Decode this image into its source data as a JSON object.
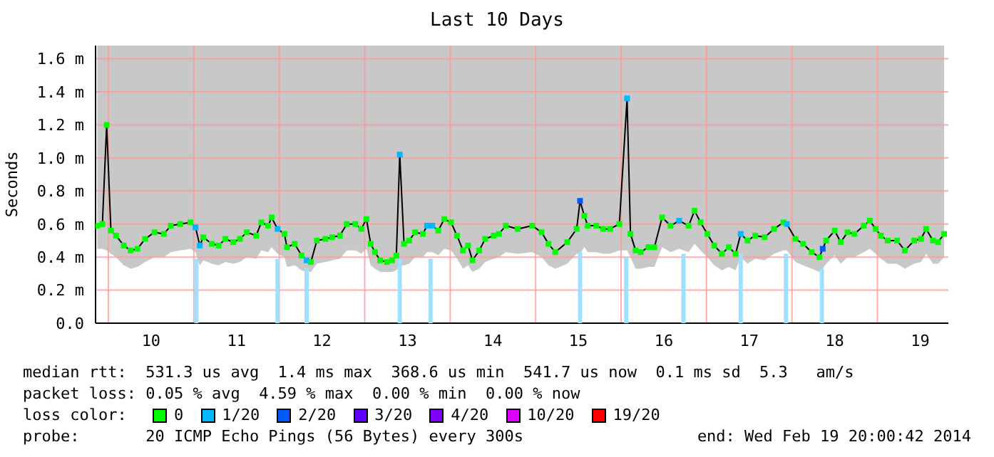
{
  "chart_data": {
    "type": "line",
    "title": "Last 10 Days",
    "ylabel": "Seconds",
    "legend_title": "loss color:",
    "legend": "bottom",
    "marker": "square",
    "grid": true,
    "xlim": [
      9.85,
      19.83
    ],
    "xticks": [
      {
        "value": 10,
        "label": null
      },
      {
        "value": 10.5,
        "label": "10"
      },
      {
        "value": 11,
        "label": null
      },
      {
        "value": 11.5,
        "label": "11"
      },
      {
        "value": 12,
        "label": null
      },
      {
        "value": 12.5,
        "label": "12"
      },
      {
        "value": 13,
        "label": null
      },
      {
        "value": 13.5,
        "label": "13"
      },
      {
        "value": 14,
        "label": null
      },
      {
        "value": 14.5,
        "label": "14"
      },
      {
        "value": 15,
        "label": null
      },
      {
        "value": 15.5,
        "label": "15"
      },
      {
        "value": 16,
        "label": null
      },
      {
        "value": 16.5,
        "label": "16"
      },
      {
        "value": 17,
        "label": null
      },
      {
        "value": 17.5,
        "label": "17"
      },
      {
        "value": 18,
        "label": null
      },
      {
        "value": 18.5,
        "label": "18"
      },
      {
        "value": 19,
        "label": null
      },
      {
        "value": 19.5,
        "label": "19"
      }
    ],
    "ylim": [
      0,
      1.68
    ],
    "yticks": [
      {
        "value": 0,
        "label": "0.0"
      },
      {
        "value": 0.2,
        "label": "0.2 m"
      },
      {
        "value": 0.4,
        "label": "0.4 m"
      },
      {
        "value": 0.6,
        "label": "0.6 m"
      },
      {
        "value": 0.8,
        "label": "0.8 m"
      },
      {
        "value": 1.0,
        "label": "1.0 m"
      },
      {
        "value": 1.2,
        "label": "1.2 m"
      },
      {
        "value": 1.4,
        "label": "1.4 m"
      },
      {
        "value": 1.6,
        "label": "1.6 m"
      }
    ],
    "series": [
      {
        "type": "bar",
        "color": "#a0e0ff",
        "x": [
          11.03,
          11.98,
          12.32,
          13.41,
          13.77,
          15.52,
          16.06,
          16.73,
          17.4,
          17.93,
          18.35
        ],
        "values": [
          0.39,
          0.39,
          0.33,
          0.39,
          0.39,
          0.43,
          0.4,
          0.42,
          0.42,
          0.42,
          0.33
        ]
      },
      {
        "marker": "none",
        "color": "#000000",
        "lower": [
          0.45,
          0.45,
          0.44,
          0.42,
          0.4,
          0.35,
          0.33,
          0.34,
          0.37,
          0.4,
          0.4,
          0.43,
          0.44,
          0.45,
          0.43,
          0.35,
          0.38,
          0.36,
          0.35,
          0.37,
          0.36,
          0.37,
          0.4,
          0.39,
          0.44,
          0.43,
          0.46,
          0.42,
          0.4,
          0.34,
          0.35,
          0.32,
          0.31,
          0.31,
          0.36,
          0.37,
          0.38,
          0.39,
          0.44,
          0.44,
          0.42,
          0.45,
          0.35,
          0.33,
          0.31,
          0.31,
          0.31,
          0.32,
          0.35,
          0.35,
          0.36,
          0.4,
          0.4,
          0.43,
          0.43,
          0.41,
          0.45,
          0.44,
          0.39,
          0.33,
          0.35,
          0.31,
          0.33,
          0.37,
          0.39,
          0.4,
          0.43,
          0.42,
          0.43,
          0.4,
          0.35,
          0.33,
          0.36,
          0.42,
          0.42,
          0.46,
          0.43,
          0.43,
          0.42,
          0.42,
          0.44,
          0.44,
          0.4,
          0.33,
          0.33,
          0.34,
          0.34,
          0.46,
          0.43,
          0.45,
          0.43,
          0.48,
          0.44,
          0.4,
          0.35,
          0.32,
          0.34,
          0.32,
          0.4,
          0.36,
          0.39,
          0.38,
          0.42,
          0.44,
          0.44,
          0.37,
          0.35,
          0.33,
          0.31,
          0.33,
          0.36,
          0.41,
          0.36,
          0.4,
          0.4,
          0.43,
          0.45,
          0.42,
          0.39,
          0.36,
          0.36,
          0.33,
          0.36,
          0.37,
          0.42,
          0.36,
          0.36,
          0.4
        ],
        "upper": [
          1.68,
          1.68,
          1.68,
          1.68,
          1.68,
          1.68,
          1.68,
          1.68,
          1.68,
          1.68,
          1.68,
          1.68,
          1.68,
          1.68,
          1.68,
          1.68,
          1.68,
          1.68,
          1.68,
          1.68,
          1.68,
          1.68,
          1.68,
          1.68,
          1.68,
          1.68,
          1.68,
          1.68,
          1.68,
          1.68,
          1.68,
          1.68,
          1.68,
          1.68,
          1.68,
          1.68,
          1.68,
          1.68,
          1.68,
          1.68,
          1.68,
          1.68,
          1.68,
          1.68,
          1.68,
          1.68,
          1.68,
          1.68,
          1.68,
          1.68,
          1.68,
          1.68,
          1.68,
          1.68,
          1.68,
          1.68,
          1.68,
          1.68,
          1.68,
          1.68,
          1.68,
          1.68,
          1.68,
          1.68,
          1.68,
          1.68,
          1.68,
          1.68,
          1.68,
          1.68,
          1.68,
          1.68,
          1.68,
          1.68,
          1.68,
          1.68,
          1.68,
          1.68,
          1.68,
          1.68,
          1.68,
          1.68,
          1.68,
          1.68,
          1.68,
          1.68,
          1.68,
          1.68,
          1.68,
          1.68,
          1.68,
          1.68,
          1.68,
          1.68,
          1.68,
          1.68,
          1.68,
          1.68,
          1.68,
          1.68,
          1.68,
          1.68,
          1.68,
          1.68,
          1.68,
          1.68,
          1.68,
          1.68,
          1.68,
          1.68,
          1.68,
          1.68,
          1.68,
          1.68,
          1.68,
          1.68,
          1.68,
          1.68,
          1.68,
          1.68,
          1.68,
          1.68,
          1.68,
          1.68,
          1.68,
          1.68,
          1.68,
          1.68
        ],
        "x": [
          9.87,
          9.93,
          9.98,
          10.03,
          10.09,
          10.18,
          10.26,
          10.34,
          10.43,
          10.54,
          10.65,
          10.73,
          10.84,
          10.96,
          11.02,
          11.07,
          11.11,
          11.21,
          11.29,
          11.37,
          11.46,
          11.54,
          11.62,
          11.73,
          11.79,
          11.87,
          11.91,
          11.98,
          12.06,
          12.09,
          12.18,
          12.26,
          12.32,
          12.37,
          12.44,
          12.54,
          12.62,
          12.71,
          12.79,
          12.89,
          12.96,
          13.02,
          13.07,
          13.12,
          13.18,
          13.26,
          13.32,
          13.37,
          13.41,
          13.46,
          13.52,
          13.59,
          13.68,
          13.73,
          13.79,
          13.86,
          13.93,
          14.01,
          14.08,
          14.15,
          14.21,
          14.26,
          14.34,
          14.41,
          14.51,
          14.57,
          14.65,
          14.79,
          14.96,
          15.07,
          15.15,
          15.23,
          15.37,
          15.48,
          15.52,
          15.57,
          15.61,
          15.71,
          15.79,
          15.87,
          15.98,
          16.07,
          16.11,
          16.17,
          16.23,
          16.32,
          16.39,
          16.48,
          16.58,
          16.68,
          16.79,
          16.86,
          16.93,
          17.01,
          17.09,
          17.18,
          17.26,
          17.34,
          17.4,
          17.48,
          17.57,
          17.68,
          17.79,
          17.9,
          17.94,
          18.04,
          18.13,
          18.23,
          18.32,
          18.36,
          18.4,
          18.5,
          18.57,
          18.65,
          18.73,
          18.84,
          18.91,
          18.98,
          19.04,
          19.12,
          19.23,
          19.32,
          19.43,
          19.51,
          19.57,
          19.65,
          19.71,
          19.78
        ],
        "values": [
          0.59,
          0.6,
          1.2,
          0.56,
          0.53,
          0.47,
          0.44,
          0.45,
          0.51,
          0.55,
          0.54,
          0.59,
          0.6,
          0.61,
          0.58,
          0.47,
          0.52,
          0.48,
          0.47,
          0.51,
          0.49,
          0.51,
          0.55,
          0.53,
          0.61,
          0.59,
          0.64,
          0.57,
          0.54,
          0.46,
          0.48,
          0.41,
          0.38,
          0.37,
          0.5,
          0.51,
          0.52,
          0.53,
          0.6,
          0.6,
          0.57,
          0.63,
          0.48,
          0.43,
          0.38,
          0.37,
          0.38,
          0.41,
          1.02,
          0.48,
          0.5,
          0.55,
          0.54,
          0.59,
          0.59,
          0.56,
          0.63,
          0.61,
          0.53,
          0.44,
          0.47,
          0.38,
          0.44,
          0.51,
          0.53,
          0.54,
          0.59,
          0.57,
          0.59,
          0.55,
          0.48,
          0.43,
          0.49,
          0.57,
          0.74,
          0.65,
          0.59,
          0.59,
          0.57,
          0.57,
          0.6,
          1.36,
          0.54,
          0.44,
          0.43,
          0.46,
          0.46,
          0.64,
          0.59,
          0.62,
          0.59,
          0.68,
          0.61,
          0.54,
          0.47,
          0.42,
          0.46,
          0.42,
          0.54,
          0.5,
          0.53,
          0.52,
          0.57,
          0.61,
          0.6,
          0.51,
          0.48,
          0.43,
          0.4,
          0.45,
          0.5,
          0.56,
          0.49,
          0.55,
          0.54,
          0.59,
          0.62,
          0.57,
          0.53,
          0.5,
          0.5,
          0.44,
          0.5,
          0.51,
          0.57,
          0.5,
          0.49,
          0.54
        ]
      },
      {
        "type": "scatter",
        "name": "0",
        "color": "#00ff00",
        "x": [
          9.87,
          9.93,
          9.98,
          10.03,
          10.09,
          10.18,
          10.26,
          10.34,
          10.43,
          10.54,
          10.65,
          10.73,
          10.84,
          10.96,
          11.11,
          11.21,
          11.29,
          11.37,
          11.46,
          11.54,
          11.62,
          11.73,
          11.79,
          11.87,
          11.91,
          12.06,
          12.09,
          12.18,
          12.26,
          12.37,
          12.44,
          12.54,
          12.62,
          12.71,
          12.79,
          12.89,
          12.96,
          13.02,
          13.07,
          13.12,
          13.18,
          13.26,
          13.32,
          13.37,
          13.46,
          13.52,
          13.59,
          13.68,
          13.86,
          13.93,
          14.01,
          14.08,
          14.15,
          14.21,
          14.26,
          14.34,
          14.41,
          14.51,
          14.57,
          14.65,
          14.79,
          14.96,
          15.07,
          15.15,
          15.23,
          15.37,
          15.48,
          15.57,
          15.61,
          15.71,
          15.79,
          15.87,
          15.98,
          16.11,
          16.17,
          16.23,
          16.32,
          16.39,
          16.48,
          16.58,
          16.79,
          16.86,
          16.93,
          17.01,
          17.09,
          17.18,
          17.26,
          17.34,
          17.48,
          17.57,
          17.68,
          17.79,
          17.9,
          18.04,
          18.13,
          18.23,
          18.32,
          18.4,
          18.5,
          18.57,
          18.65,
          18.73,
          18.84,
          18.91,
          18.98,
          19.04,
          19.12,
          19.23,
          19.32,
          19.43,
          19.51,
          19.57,
          19.65,
          19.71,
          19.78
        ],
        "values": [
          0.59,
          0.6,
          1.2,
          0.56,
          0.53,
          0.47,
          0.44,
          0.45,
          0.51,
          0.55,
          0.54,
          0.59,
          0.6,
          0.61,
          0.52,
          0.48,
          0.47,
          0.51,
          0.49,
          0.51,
          0.55,
          0.53,
          0.61,
          0.59,
          0.64,
          0.54,
          0.46,
          0.48,
          0.41,
          0.37,
          0.5,
          0.51,
          0.52,
          0.53,
          0.6,
          0.6,
          0.57,
          0.63,
          0.48,
          0.43,
          0.38,
          0.37,
          0.38,
          0.41,
          0.48,
          0.5,
          0.55,
          0.54,
          0.56,
          0.63,
          0.61,
          0.53,
          0.44,
          0.47,
          0.38,
          0.44,
          0.51,
          0.53,
          0.54,
          0.59,
          0.57,
          0.59,
          0.55,
          0.48,
          0.43,
          0.49,
          0.57,
          0.65,
          0.59,
          0.59,
          0.57,
          0.57,
          0.6,
          0.54,
          0.44,
          0.43,
          0.46,
          0.46,
          0.64,
          0.59,
          0.59,
          0.68,
          0.61,
          0.54,
          0.47,
          0.42,
          0.46,
          0.42,
          0.5,
          0.53,
          0.52,
          0.57,
          0.61,
          0.51,
          0.48,
          0.43,
          0.4,
          0.5,
          0.56,
          0.49,
          0.55,
          0.54,
          0.59,
          0.62,
          0.57,
          0.53,
          0.5,
          0.5,
          0.44,
          0.5,
          0.51,
          0.57,
          0.5,
          0.49,
          0.54
        ]
      },
      {
        "type": "scatter",
        "name": "1/20",
        "color": "#00b8ff",
        "x": [
          11.02,
          11.07,
          11.98,
          12.32,
          13.41,
          13.73,
          13.79,
          16.07,
          16.68,
          17.4,
          17.94
        ],
        "values": [
          0.58,
          0.47,
          0.57,
          0.38,
          1.02,
          0.59,
          0.59,
          1.36,
          0.62,
          0.54,
          0.6
        ]
      },
      {
        "type": "scatter",
        "name": "2/20",
        "color": "#0059ff",
        "x": [
          15.52,
          18.36
        ],
        "values": [
          0.74,
          0.45
        ]
      },
      {
        "type": "scatter",
        "name": "3/20",
        "color": "#5e00ff"
      },
      {
        "type": "scatter",
        "name": "4/20",
        "color": "#7e00ff"
      },
      {
        "type": "scatter",
        "name": "10/20",
        "color": "#dd00ff"
      },
      {
        "type": "scatter",
        "name": "19/20",
        "color": "#ff0000"
      }
    ],
    "annotations": [
      "median rtt:  531.3 us avg  1.4 ms max  368.6 us min  541.7 us now  0.1 ms sd  5.3   am/s",
      "packet loss: 0.05 % avg  4.59 % max  0.00 % min  0.00 % now",
      "probe:       20 ICMP Echo Pings (56 Bytes) every 300s",
      "end: Wed Feb 19 20:00:42 2014"
    ]
  }
}
